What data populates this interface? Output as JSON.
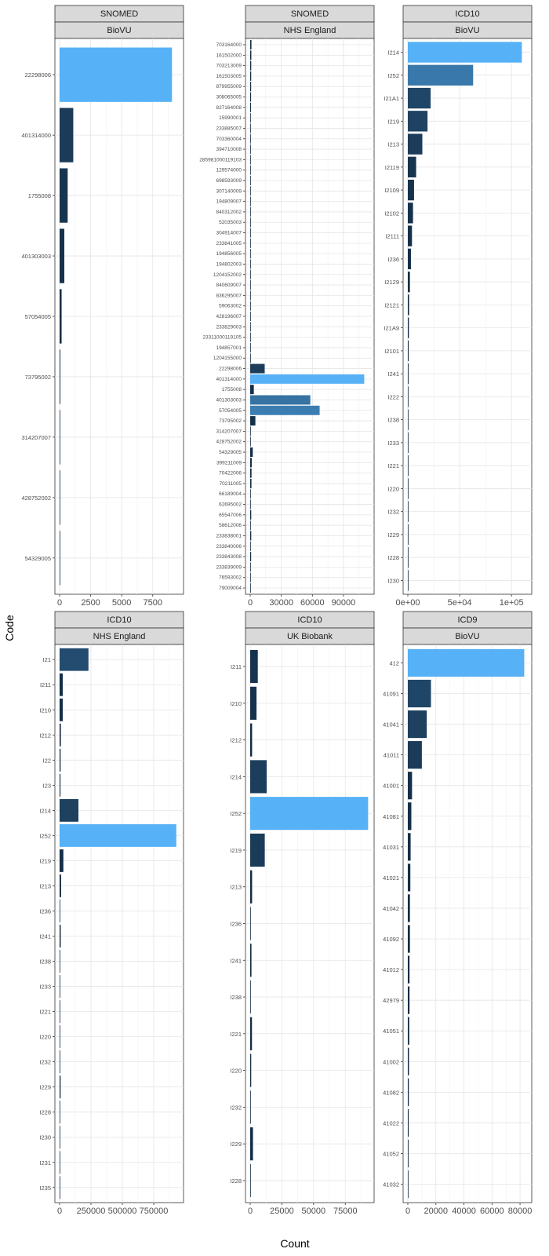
{
  "axis_titles": {
    "x": "Count",
    "y": "Code"
  },
  "colors": {
    "low": "#132B43",
    "high": "#56B1F7",
    "strip_fill": "#d9d9d9",
    "grid": "#e5e5e5"
  },
  "chart_data": [
    {
      "type": "bar",
      "orientation": "horizontal",
      "facet": [
        "SNOMED",
        "BioVU"
      ],
      "xlim": [
        0,
        9600
      ],
      "xticks": [
        0,
        2500,
        5000,
        7500
      ],
      "xtick_labels": [
        "0",
        "2500",
        "5000",
        "7500"
      ],
      "categories": [
        "22298006",
        "401314000",
        "1755008",
        "401303003",
        "57054005",
        "73795002",
        "314207007",
        "428752002",
        "54329005"
      ],
      "values": [
        9050,
        1100,
        650,
        380,
        160,
        60,
        15,
        10,
        5
      ]
    },
    {
      "type": "bar",
      "orientation": "horizontal",
      "facet": [
        "SNOMED",
        "NHS England"
      ],
      "xlim": [
        0,
        115000
      ],
      "xticks": [
        0,
        30000,
        60000,
        90000
      ],
      "xtick_labels": [
        "0",
        "30000",
        "60000",
        "90000"
      ],
      "categories": [
        "703164000",
        "161502000",
        "703213009",
        "161503005",
        "879955009",
        "308065005",
        "827164008",
        "15990001",
        "233885007",
        "703360004",
        "394710008",
        "285981000119103",
        "129574000",
        "698593009",
        "307140009",
        "194809007",
        "840312002",
        "52035003",
        "304914007",
        "233841005",
        "194856005",
        "194802003",
        "1204152002",
        "840609007",
        "836295007",
        "59063002",
        "428196007",
        "233829003",
        "23311000119105",
        "194857001",
        "1204155000",
        "22298006",
        "401314000",
        "1755008",
        "401303003",
        "57054005",
        "73795002",
        "314207007",
        "428752002",
        "54329005",
        "399211009",
        "70422006",
        "70211005",
        "66189004",
        "62695002",
        "65547006",
        "58612006",
        "233838001",
        "233840006",
        "233843008",
        "233839009",
        "76593002",
        "79009004"
      ],
      "values": [
        1200,
        1100,
        1000,
        950,
        900,
        850,
        800,
        400,
        350,
        300,
        280,
        250,
        230,
        210,
        190,
        170,
        150,
        130,
        120,
        110,
        100,
        90,
        80,
        70,
        60,
        55,
        50,
        45,
        40,
        35,
        30,
        14000,
        110000,
        3500,
        58000,
        67000,
        5000,
        500,
        400,
        2500,
        1500,
        1300,
        1200,
        600,
        500,
        1000,
        400,
        1000,
        300,
        900,
        200,
        150,
        100
      ]
    },
    {
      "type": "bar",
      "orientation": "horizontal",
      "facet": [
        "ICD10",
        "BioVU"
      ],
      "xlim": [
        0,
        115000
      ],
      "xticks": [
        0,
        50000,
        100000
      ],
      "xtick_labels": [
        "0e+00",
        "5e+04",
        "1e+05"
      ],
      "categories": [
        "I214",
        "I252",
        "I21A1",
        "I219",
        "I213",
        "I2119",
        "I2109",
        "I2102",
        "I2111",
        "I236",
        "I2129",
        "I2121",
        "I21A9",
        "I2101",
        "I241",
        "I222",
        "I238",
        "I233",
        "I221",
        "I220",
        "I232",
        "I229",
        "I228",
        "I230"
      ],
      "values": [
        110000,
        63000,
        22000,
        19000,
        14000,
        8000,
        6000,
        5000,
        4000,
        3000,
        2000,
        1200,
        1000,
        800,
        700,
        500,
        400,
        300,
        300,
        250,
        200,
        200,
        150,
        100
      ]
    },
    {
      "type": "bar",
      "orientation": "horizontal",
      "facet": [
        "ICD10",
        "NHS England"
      ],
      "xlim": [
        0,
        950000
      ],
      "xticks": [
        0,
        250000,
        500000,
        750000
      ],
      "xtick_labels": [
        "0",
        "250000",
        "500000",
        "750000"
      ],
      "categories": [
        "I21",
        "I211",
        "I210",
        "I212",
        "I22",
        "I23",
        "I214",
        "I252",
        "I219",
        "I213",
        "I236",
        "I241",
        "I238",
        "I233",
        "I221",
        "I220",
        "I232",
        "I229",
        "I228",
        "I230",
        "I231",
        "I235"
      ],
      "values": [
        230000,
        25000,
        25000,
        10000,
        8000,
        7000,
        150000,
        930000,
        30000,
        12000,
        4000,
        9000,
        2500,
        1500,
        1000,
        1500,
        1500,
        8000,
        1000,
        1000,
        600,
        600
      ]
    },
    {
      "type": "bar",
      "orientation": "horizontal",
      "facet": [
        "ICD10",
        "UK Biobank"
      ],
      "xlim": [
        0,
        94000
      ],
      "xticks": [
        0,
        25000,
        50000,
        75000
      ],
      "xtick_labels": [
        "0",
        "25000",
        "50000",
        "75000"
      ],
      "categories": [
        "I211",
        "I210",
        "I212",
        "I214",
        "I252",
        "I219",
        "I213",
        "I236",
        "I241",
        "I238",
        "I221",
        "I220",
        "I232",
        "I229",
        "I228"
      ],
      "values": [
        6000,
        5000,
        1500,
        13000,
        93000,
        11500,
        1500,
        200,
        1000,
        300,
        1400,
        800,
        200,
        2200,
        300
      ]
    },
    {
      "type": "bar",
      "orientation": "horizontal",
      "facet": [
        "ICD9",
        "BioVU"
      ],
      "xlim": [
        0,
        85000
      ],
      "xticks": [
        0,
        20000,
        40000,
        60000,
        80000
      ],
      "xtick_labels": [
        "0",
        "20000",
        "40000",
        "60000",
        "80000"
      ],
      "categories": [
        "412",
        "41091",
        "41041",
        "41011",
        "41001",
        "41081",
        "41031",
        "41021",
        "41042",
        "41092",
        "41012",
        "42979",
        "41051",
        "41002",
        "41082",
        "41022",
        "41052",
        "41032"
      ],
      "values": [
        83000,
        16500,
        13500,
        10000,
        3000,
        2500,
        2000,
        1800,
        1500,
        1500,
        1200,
        1200,
        1000,
        800,
        700,
        600,
        500,
        400
      ]
    }
  ]
}
